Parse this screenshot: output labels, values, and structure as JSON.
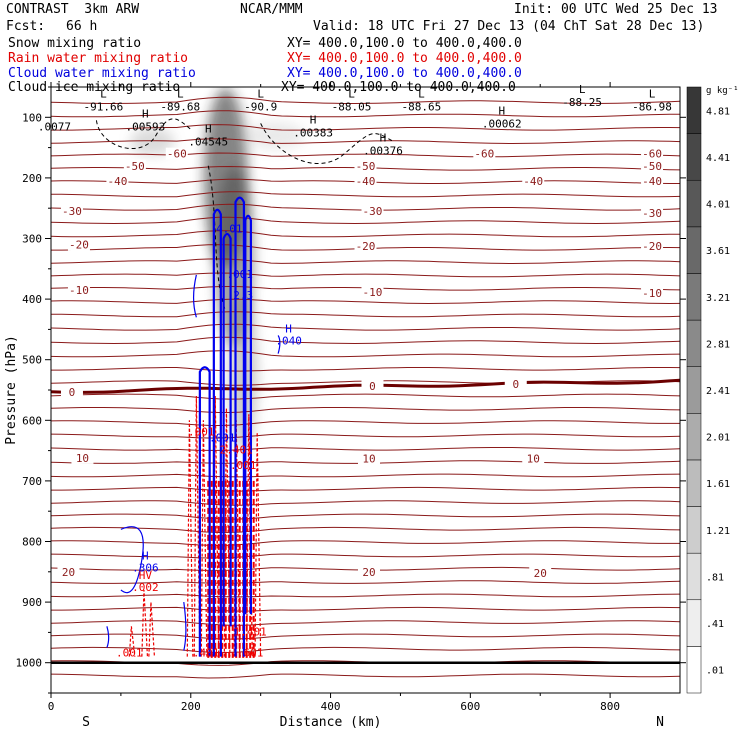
{
  "header": {
    "model": "CONTRAST  3km ARW",
    "org": "NCAR/MMM",
    "init": "Init: 00 UTC Wed 25 Dec 13",
    "fcst_label": "Fcst:",
    "fcst_value": "66 h",
    "valid": "Valid: 18 UTC Fri 27 Dec 13 (04 ChT Sat 28 Dec 13)"
  },
  "fields": [
    {
      "name": "Snow mixing ratio",
      "xy": "XY= 400.0,100.0 to 400.0,400.0",
      "color": "#000000"
    },
    {
      "name": "Rain water mixing ratio",
      "xy": "XY= 400.0,100.0 to 400.0,400.0",
      "color": "#e00000"
    },
    {
      "name": "Cloud water mixing ratio",
      "xy": "XY= 400.0,100.0 to 400.0,400.0",
      "color": "#0000dd"
    },
    {
      "name": "Cloud ice mixing ratio",
      "xy": "XY= 400.0,100.0 to 400.0,400.0",
      "color": "#000000"
    }
  ],
  "colors": {
    "contour_red": "#8b1a1a",
    "contour_zero": "#6b0000",
    "cloud_water": "#0000ee",
    "rain": "#ee0000",
    "ground": "#000000"
  },
  "chart_data": {
    "type": "contour-cross-section",
    "xlabel": "Distance (km)",
    "ylabel": "Pressure (hPa)",
    "xlim": [
      0,
      900
    ],
    "ylim": [
      1050,
      50
    ],
    "x_ticks": [
      0,
      200,
      400,
      600,
      800
    ],
    "y_ticks": [
      100,
      200,
      300,
      400,
      500,
      600,
      700,
      800,
      900,
      1000
    ],
    "end_labels": {
      "left": "S",
      "right": "N"
    },
    "colorbar": {
      "unit": "g kg⁻¹",
      "levels": [
        ".01",
        ".41",
        ".81",
        "1.21",
        "1.61",
        "2.01",
        "2.41",
        "2.81",
        "3.21",
        "3.61",
        "4.01",
        "4.41",
        "4.81"
      ]
    },
    "temperature_labels": [
      {
        "x": 180,
        "p": 160,
        "t": "-60"
      },
      {
        "x": 620,
        "p": 160,
        "t": "-60"
      },
      {
        "x": 860,
        "p": 160,
        "t": "-60"
      },
      {
        "x": 120,
        "p": 180,
        "t": "-50"
      },
      {
        "x": 450,
        "p": 180,
        "t": "-50"
      },
      {
        "x": 860,
        "p": 180,
        "t": "-50"
      },
      {
        "x": 95,
        "p": 205,
        "t": "-40"
      },
      {
        "x": 450,
        "p": 205,
        "t": "-40"
      },
      {
        "x": 690,
        "p": 205,
        "t": "-40"
      },
      {
        "x": 860,
        "p": 205,
        "t": "-40"
      },
      {
        "x": 30,
        "p": 255,
        "t": "-30"
      },
      {
        "x": 460,
        "p": 255,
        "t": "-30"
      },
      {
        "x": 860,
        "p": 258,
        "t": "-30"
      },
      {
        "x": 40,
        "p": 310,
        "t": "-20"
      },
      {
        "x": 450,
        "p": 312,
        "t": "-20"
      },
      {
        "x": 860,
        "p": 312,
        "t": "-20"
      },
      {
        "x": 40,
        "p": 385,
        "t": "-10"
      },
      {
        "x": 460,
        "p": 388,
        "t": "-10"
      },
      {
        "x": 860,
        "p": 390,
        "t": "-10"
      },
      {
        "x": 30,
        "p": 553,
        "t": "0"
      },
      {
        "x": 460,
        "p": 543,
        "t": "0"
      },
      {
        "x": 665,
        "p": 540,
        "t": "0"
      },
      {
        "x": 45,
        "p": 662,
        "t": "10"
      },
      {
        "x": 455,
        "p": 663,
        "t": "10"
      },
      {
        "x": 690,
        "p": 663,
        "t": "10"
      },
      {
        "x": 25,
        "p": 850,
        "t": "20"
      },
      {
        "x": 455,
        "p": 850,
        "t": "20"
      },
      {
        "x": 700,
        "p": 852,
        "t": "20"
      }
    ],
    "extrema": [
      {
        "x": 75,
        "p": 82,
        "m": "L",
        "v": "-91.66"
      },
      {
        "x": 185,
        "p": 82,
        "m": "L",
        "v": "-89.68"
      },
      {
        "x": 300,
        "p": 82,
        "m": "L",
        "v": "-90.9"
      },
      {
        "x": 430,
        "p": 82,
        "m": "L",
        "v": "-88.05"
      },
      {
        "x": 530,
        "p": 82,
        "m": "L",
        "v": "-88.65"
      },
      {
        "x": 760,
        "p": 75,
        "m": "L",
        "v": "-88.25"
      },
      {
        "x": 860,
        "p": 82,
        "m": "L",
        "v": "-86.98"
      },
      {
        "x": 5,
        "p": 115,
        "m": "",
        "v": ".0077"
      },
      {
        "x": 135,
        "p": 115,
        "m": "H",
        "v": ".00593"
      },
      {
        "x": 225,
        "p": 140,
        "m": "H",
        "v": ".04545"
      },
      {
        "x": 375,
        "p": 125,
        "m": "H",
        "v": ".00383"
      },
      {
        "x": 475,
        "p": 155,
        "m": "H",
        "v": ".00376"
      },
      {
        "x": 645,
        "p": 110,
        "m": "H",
        "v": ".00062"
      }
    ],
    "cloud_water_labels": [
      {
        "x": 255,
        "p": 290,
        "v": "4.01"
      },
      {
        "x": 270,
        "p": 365,
        "v": ".001"
      },
      {
        "x": 275,
        "p": 400,
        "v": "2.3"
      },
      {
        "x": 340,
        "p": 455,
        "v": "H\n.040"
      },
      {
        "x": 135,
        "p": 830,
        "v": "H\n.306"
      },
      {
        "x": 245,
        "p": 635,
        "v": ".001"
      }
    ],
    "rain_labels": [
      {
        "x": 215,
        "p": 625,
        "v": ".001"
      },
      {
        "x": 265,
        "p": 655,
        "v": "2.401"
      },
      {
        "x": 275,
        "p": 680,
        "v": ".001"
      },
      {
        "x": 135,
        "p": 862,
        "v": "HV\n.002"
      },
      {
        "x": 112,
        "p": 990,
        "v": ".001"
      },
      {
        "x": 222,
        "p": 990,
        "v": ".401"
      },
      {
        "x": 285,
        "p": 990,
        "v": ".601"
      },
      {
        "x": 285,
        "p": 955,
        "v": "1.401"
      }
    ]
  }
}
